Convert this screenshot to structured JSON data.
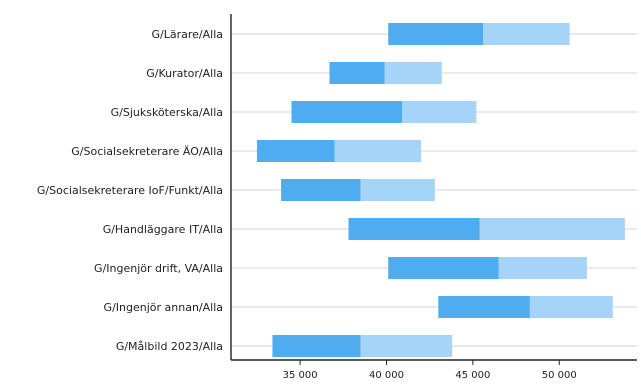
{
  "chart_data": {
    "type": "bar",
    "orientation": "horizontal",
    "stacked": true,
    "categories": [
      "G/Lärare/Alla",
      "G/Kurator/Alla",
      "G/Sjuksköterska/Alla",
      "G/Socialsekreterare ÄO/Alla",
      "G/Socialsekreterare IoF/Funkt/Alla",
      "G/Handläggare IT/Alla",
      "G/Ingenjör drift, VA/Alla",
      "G/Ingenjör annan/Alla",
      "G/Målbild 2023/Alla"
    ],
    "ranges": [
      {
        "start": 40100,
        "mid": 45600,
        "end": 50600
      },
      {
        "start": 36700,
        "mid": 39900,
        "end": 43200
      },
      {
        "start": 34500,
        "mid": 40900,
        "end": 45200
      },
      {
        "start": 32500,
        "mid": 37000,
        "end": 42000
      },
      {
        "start": 33900,
        "mid": 38500,
        "end": 42800
      },
      {
        "start": 37800,
        "mid": 45400,
        "end": 53800
      },
      {
        "start": 40100,
        "mid": 46500,
        "end": 51600
      },
      {
        "start": 43000,
        "mid": 48300,
        "end": 53100
      },
      {
        "start": 33400,
        "mid": 38500,
        "end": 43800
      }
    ],
    "xlim": [
      31000,
      54500
    ],
    "xticks": [
      35000,
      40000,
      45000,
      50000
    ],
    "xtick_labels": [
      "35 000",
      "40 000",
      "45 000",
      "50 000"
    ],
    "grid": "horizontal",
    "colors": {
      "lower": "#4FACEF",
      "upper": "#A5D4F8",
      "grid": "#D3D3D3",
      "axis": "#222222"
    }
  }
}
